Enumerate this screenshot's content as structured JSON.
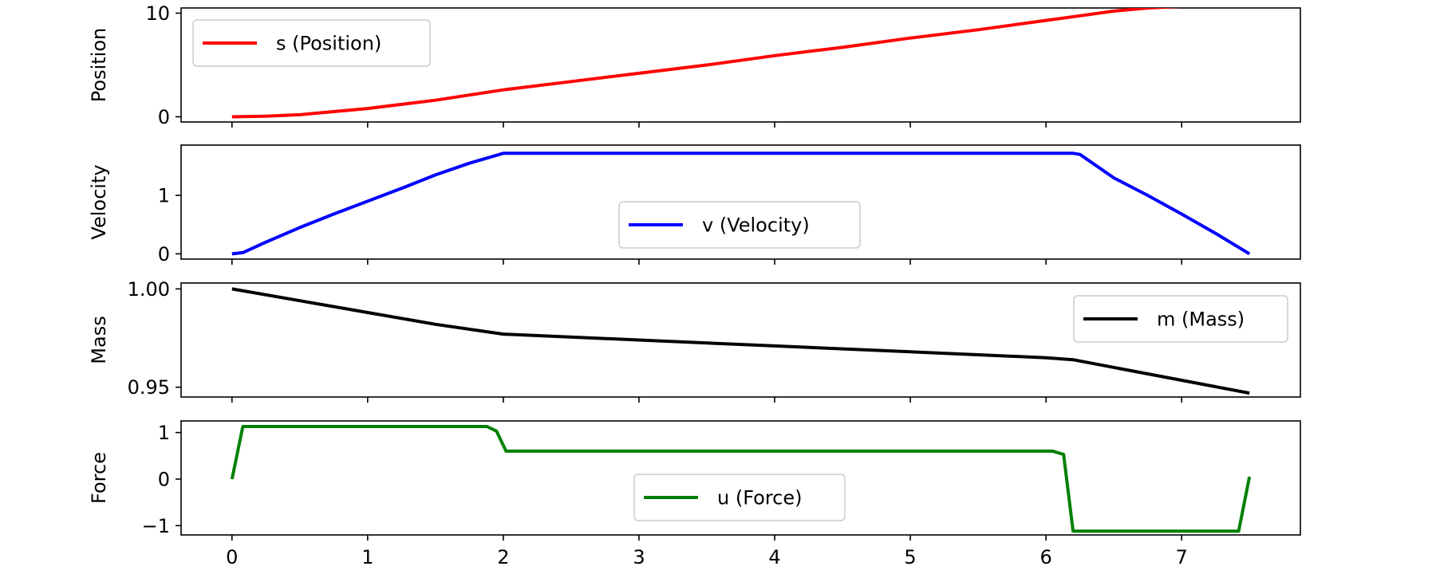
{
  "chart_data": [
    {
      "type": "line",
      "title": "",
      "xlabel": "",
      "ylabel": "Position",
      "xlim": [
        -0.375,
        7.875
      ],
      "ylim": [
        -0.5,
        10.5
      ],
      "xticks": [
        0,
        1,
        2,
        3,
        4,
        5,
        6,
        7
      ],
      "yticks": [
        0,
        10
      ],
      "ytick_labels": [
        "0",
        "10"
      ],
      "show_xtick_labels": false,
      "legend_position": "upper-left",
      "series": [
        {
          "name": "s (Position)",
          "color": "#ff0000",
          "x": [
            0,
            0.25,
            0.5,
            0.75,
            1.0,
            1.25,
            1.5,
            1.75,
            2.0,
            2.5,
            3.0,
            3.5,
            4.0,
            4.5,
            5.0,
            5.5,
            6.0,
            6.25,
            6.5,
            6.75,
            7.0,
            7.25,
            7.5
          ],
          "y": [
            0,
            0.06,
            0.2,
            0.5,
            0.8,
            1.2,
            1.6,
            2.1,
            2.6,
            3.4,
            4.2,
            5.0,
            5.9,
            6.7,
            7.6,
            8.4,
            9.3,
            9.75,
            10.2,
            10.5,
            10.65,
            10.73,
            10.75
          ]
        }
      ]
    },
    {
      "type": "line",
      "title": "",
      "xlabel": "",
      "ylabel": "Velocity",
      "xlim": [
        -0.375,
        7.875
      ],
      "ylim": [
        -0.09,
        1.86
      ],
      "xticks": [
        0,
        1,
        2,
        3,
        4,
        5,
        6,
        7
      ],
      "yticks": [
        0,
        1
      ],
      "ytick_labels": [
        "0",
        "1"
      ],
      "show_xtick_labels": false,
      "legend_position": "lower-center",
      "series": [
        {
          "name": "v (Velocity)",
          "color": "#0000ff",
          "x": [
            0,
            0.08,
            0.25,
            0.5,
            0.75,
            1.0,
            1.25,
            1.5,
            1.75,
            2.0,
            3.0,
            4.0,
            5.0,
            6.0,
            6.2,
            6.25,
            6.5,
            6.75,
            7.0,
            7.25,
            7.5
          ],
          "y": [
            0,
            0.02,
            0.2,
            0.45,
            0.68,
            0.9,
            1.12,
            1.35,
            1.55,
            1.72,
            1.72,
            1.72,
            1.72,
            1.72,
            1.72,
            1.7,
            1.3,
            1.0,
            0.68,
            0.35,
            0.0
          ]
        }
      ]
    },
    {
      "type": "line",
      "title": "",
      "xlabel": "",
      "ylabel": "Mass",
      "xlim": [
        -0.375,
        7.875
      ],
      "ylim": [
        0.945,
        1.003
      ],
      "xticks": [
        0,
        1,
        2,
        3,
        4,
        5,
        6,
        7
      ],
      "yticks": [
        0.95,
        1.0
      ],
      "ytick_labels": [
        "0.95",
        "1.00"
      ],
      "show_xtick_labels": false,
      "legend_position": "upper-right",
      "series": [
        {
          "name": "m (Mass)",
          "color": "#000000",
          "x": [
            0,
            0.5,
            1.0,
            1.5,
            2.0,
            3.0,
            4.0,
            5.0,
            6.0,
            6.2,
            7.5
          ],
          "y": [
            1.0,
            0.994,
            0.988,
            0.982,
            0.977,
            0.974,
            0.971,
            0.968,
            0.965,
            0.964,
            0.947
          ]
        }
      ]
    },
    {
      "type": "line",
      "title": "",
      "xlabel": "",
      "ylabel": "Force",
      "xlim": [
        -0.375,
        7.875
      ],
      "ylim": [
        -1.2,
        1.25
      ],
      "xticks": [
        0,
        1,
        2,
        3,
        4,
        5,
        6,
        7
      ],
      "xtick_labels": [
        "0",
        "1",
        "2",
        "3",
        "4",
        "5",
        "6",
        "7"
      ],
      "yticks": [
        -1,
        0,
        1
      ],
      "ytick_labels": [
        "−1",
        "0",
        "1"
      ],
      "show_xtick_labels": true,
      "legend_position": "lower-center",
      "series": [
        {
          "name": "u (Force)",
          "color": "#008000",
          "x": [
            0,
            0.08,
            1.0,
            1.88,
            1.95,
            2.02,
            3.0,
            4.0,
            5.0,
            6.05,
            6.13,
            6.2,
            7.0,
            7.42,
            7.5
          ],
          "y": [
            0,
            1.13,
            1.13,
            1.13,
            1.03,
            0.6,
            0.6,
            0.6,
            0.6,
            0.6,
            0.53,
            -1.12,
            -1.12,
            -1.12,
            0.05
          ]
        }
      ]
    }
  ]
}
